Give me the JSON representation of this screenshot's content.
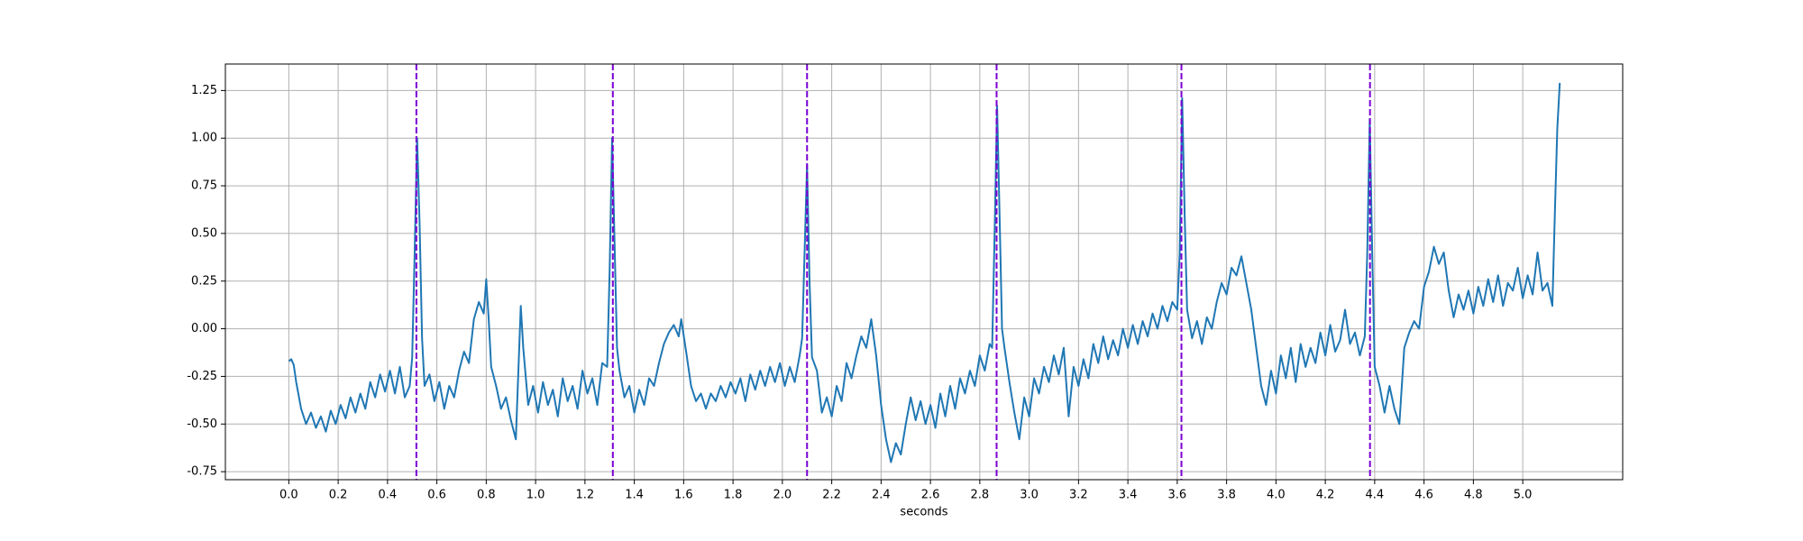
{
  "chart_data": {
    "type": "line",
    "xlabel": "seconds",
    "color": "#1f77b4",
    "grid": true,
    "xlim": [
      -0.257,
      5.405
    ],
    "ylim": [
      -0.792,
      1.389
    ],
    "xticks": [
      {
        "value": 0,
        "label": "0.0"
      },
      0.2,
      0.4,
      0.6,
      0.8,
      {
        "value": 1,
        "label": "1.0"
      },
      1.2,
      1.4,
      1.6,
      1.8,
      {
        "value": 2,
        "label": "2.0"
      },
      2.2,
      2.4,
      2.6,
      2.8,
      {
        "value": 3,
        "label": "3.0"
      },
      3.2,
      3.4,
      3.6,
      3.8,
      {
        "value": 4,
        "label": "4.0"
      },
      4.2,
      4.4,
      4.6,
      4.8,
      {
        "value": 5,
        "label": "5.0"
      }
    ],
    "yticks": [
      -0.75,
      {
        "value": -0.5,
        "label": "-0.50"
      },
      -0.25,
      {
        "value": 0,
        "label": "0.00"
      },
      0.25,
      {
        "value": 0.5,
        "label": "0.50"
      },
      0.75,
      {
        "value": 1,
        "label": "1.00"
      },
      1.25
    ],
    "markers": {
      "color": "#7b00d4",
      "x": [
        0.517,
        1.313,
        2.1,
        2.868,
        3.617,
        4.381
      ]
    },
    "x": [
      0,
      0.01,
      0.02,
      0.03,
      0.05,
      0.07,
      0.09,
      0.11,
      0.13,
      0.15,
      0.17,
      0.19,
      0.21,
      0.23,
      0.25,
      0.27,
      0.29,
      0.31,
      0.33,
      0.35,
      0.37,
      0.39,
      0.41,
      0.43,
      0.45,
      0.47,
      0.49,
      0.5,
      0.51,
      0.52,
      0.53,
      0.54,
      0.55,
      0.57,
      0.59,
      0.61,
      0.63,
      0.65,
      0.67,
      0.69,
      0.71,
      0.73,
      0.75,
      0.77,
      0.79,
      0.8,
      0.81,
      0.82,
      0.84,
      0.86,
      0.88,
      0.9,
      0.92,
      0.94,
      0.95,
      0.97,
      0.99,
      1.01,
      1.03,
      1.05,
      1.07,
      1.09,
      1.11,
      1.13,
      1.15,
      1.17,
      1.19,
      1.21,
      1.23,
      1.25,
      1.27,
      1.29,
      1.3,
      1.31,
      1.32,
      1.33,
      1.34,
      1.36,
      1.38,
      1.4,
      1.42,
      1.44,
      1.46,
      1.48,
      1.5,
      1.52,
      1.54,
      1.56,
      1.58,
      1.59,
      1.61,
      1.63,
      1.65,
      1.67,
      1.69,
      1.71,
      1.73,
      1.75,
      1.77,
      1.79,
      1.81,
      1.83,
      1.85,
      1.87,
      1.89,
      1.91,
      1.93,
      1.95,
      1.97,
      1.99,
      2.01,
      2.03,
      2.05,
      2.07,
      2.08,
      2.09,
      2.1,
      2.11,
      2.12,
      2.14,
      2.16,
      2.18,
      2.2,
      2.22,
      2.24,
      2.26,
      2.28,
      2.3,
      2.32,
      2.34,
      2.36,
      2.38,
      2.4,
      2.42,
      2.44,
      2.46,
      2.48,
      2.5,
      2.52,
      2.54,
      2.56,
      2.58,
      2.6,
      2.62,
      2.64,
      2.66,
      2.68,
      2.7,
      2.72,
      2.74,
      2.76,
      2.78,
      2.8,
      2.82,
      2.84,
      2.85,
      2.86,
      2.87,
      2.88,
      2.89,
      2.9,
      2.92,
      2.94,
      2.96,
      2.98,
      3,
      3.02,
      3.04,
      3.06,
      3.08,
      3.1,
      3.12,
      3.14,
      3.16,
      3.18,
      3.2,
      3.22,
      3.24,
      3.26,
      3.28,
      3.3,
      3.32,
      3.34,
      3.36,
      3.38,
      3.4,
      3.42,
      3.44,
      3.46,
      3.48,
      3.5,
      3.52,
      3.54,
      3.56,
      3.58,
      3.6,
      3.61,
      3.62,
      3.63,
      3.64,
      3.66,
      3.68,
      3.7,
      3.72,
      3.74,
      3.76,
      3.78,
      3.8,
      3.82,
      3.84,
      3.86,
      3.88,
      3.9,
      3.92,
      3.94,
      3.96,
      3.98,
      4,
      4.02,
      4.04,
      4.06,
      4.08,
      4.1,
      4.12,
      4.14,
      4.16,
      4.18,
      4.2,
      4.22,
      4.24,
      4.26,
      4.28,
      4.3,
      4.32,
      4.34,
      4.36,
      4.37,
      4.38,
      4.39,
      4.4,
      4.42,
      4.44,
      4.46,
      4.48,
      4.5,
      4.52,
      4.54,
      4.56,
      4.58,
      4.6,
      4.62,
      4.64,
      4.66,
      4.68,
      4.7,
      4.72,
      4.74,
      4.76,
      4.78,
      4.8,
      4.82,
      4.84,
      4.86,
      4.88,
      4.9,
      4.92,
      4.94,
      4.96,
      4.98,
      5,
      5.02,
      5.04,
      5.06,
      5.08,
      5.1,
      5.12,
      5.13,
      5.14,
      5.15
    ],
    "values": [
      -0.17,
      -0.16,
      -0.19,
      -0.28,
      -0.42,
      -0.5,
      -0.44,
      -0.52,
      -0.46,
      -0.54,
      -0.43,
      -0.5,
      -0.4,
      -0.47,
      -0.36,
      -0.44,
      -0.34,
      -0.42,
      -0.28,
      -0.36,
      -0.24,
      -0.33,
      -0.22,
      -0.34,
      -0.2,
      -0.36,
      -0.3,
      -0.15,
      0.4,
      1.0,
      0.55,
      -0.05,
      -0.3,
      -0.24,
      -0.38,
      -0.28,
      -0.42,
      -0.3,
      -0.36,
      -0.22,
      -0.12,
      -0.18,
      0.05,
      0.14,
      0.08,
      0.26,
      0.05,
      -0.2,
      -0.3,
      -0.42,
      -0.36,
      -0.48,
      -0.58,
      0.12,
      -0.1,
      -0.4,
      -0.3,
      -0.44,
      -0.28,
      -0.4,
      -0.32,
      -0.46,
      -0.26,
      -0.38,
      -0.3,
      -0.42,
      -0.22,
      -0.34,
      -0.26,
      -0.4,
      -0.18,
      -0.2,
      0.3,
      1.0,
      0.45,
      -0.1,
      -0.22,
      -0.36,
      -0.3,
      -0.44,
      -0.32,
      -0.4,
      -0.26,
      -0.3,
      -0.18,
      -0.08,
      -0.02,
      0.02,
      -0.04,
      0.05,
      -0.12,
      -0.3,
      -0.38,
      -0.34,
      -0.42,
      -0.34,
      -0.38,
      -0.3,
      -0.36,
      -0.28,
      -0.34,
      -0.26,
      -0.38,
      -0.24,
      -0.32,
      -0.22,
      -0.3,
      -0.2,
      -0.28,
      -0.18,
      -0.3,
      -0.2,
      -0.28,
      -0.14,
      -0.05,
      0.4,
      0.86,
      0.25,
      -0.15,
      -0.22,
      -0.44,
      -0.36,
      -0.46,
      -0.3,
      -0.38,
      -0.18,
      -0.26,
      -0.14,
      -0.04,
      -0.1,
      0.05,
      -0.14,
      -0.4,
      -0.58,
      -0.7,
      -0.6,
      -0.66,
      -0.5,
      -0.36,
      -0.48,
      -0.38,
      -0.5,
      -0.4,
      -0.52,
      -0.34,
      -0.46,
      -0.3,
      -0.42,
      -0.26,
      -0.34,
      -0.22,
      -0.3,
      -0.14,
      -0.22,
      -0.08,
      -0.1,
      0.5,
      1.17,
      0.6,
      0.0,
      -0.1,
      -0.28,
      -0.44,
      -0.58,
      -0.36,
      -0.46,
      -0.26,
      -0.34,
      -0.2,
      -0.28,
      -0.14,
      -0.24,
      -0.1,
      -0.46,
      -0.2,
      -0.3,
      -0.16,
      -0.26,
      -0.08,
      -0.18,
      -0.04,
      -0.16,
      -0.06,
      -0.14,
      0.0,
      -0.1,
      0.02,
      -0.08,
      0.04,
      -0.04,
      0.08,
      0.0,
      0.12,
      0.04,
      0.14,
      0.1,
      0.4,
      1.21,
      0.6,
      0.1,
      -0.05,
      0.04,
      -0.08,
      0.06,
      0.0,
      0.14,
      0.24,
      0.18,
      0.32,
      0.28,
      0.38,
      0.24,
      0.1,
      -0.1,
      -0.3,
      -0.4,
      -0.22,
      -0.34,
      -0.14,
      -0.26,
      -0.1,
      -0.28,
      -0.08,
      -0.2,
      -0.1,
      -0.18,
      -0.02,
      -0.14,
      0.02,
      -0.12,
      -0.06,
      0.1,
      -0.08,
      -0.02,
      -0.14,
      -0.04,
      0.4,
      1.1,
      0.4,
      -0.2,
      -0.3,
      -0.44,
      -0.3,
      -0.42,
      -0.5,
      -0.1,
      -0.02,
      0.04,
      0.0,
      0.22,
      0.3,
      0.43,
      0.34,
      0.4,
      0.2,
      0.06,
      0.18,
      0.1,
      0.2,
      0.08,
      0.22,
      0.12,
      0.26,
      0.14,
      0.28,
      0.12,
      0.24,
      0.2,
      0.32,
      0.16,
      0.28,
      0.18,
      0.4,
      0.2,
      0.24,
      0.12,
      0.6,
      1.05,
      1.29
    ]
  }
}
